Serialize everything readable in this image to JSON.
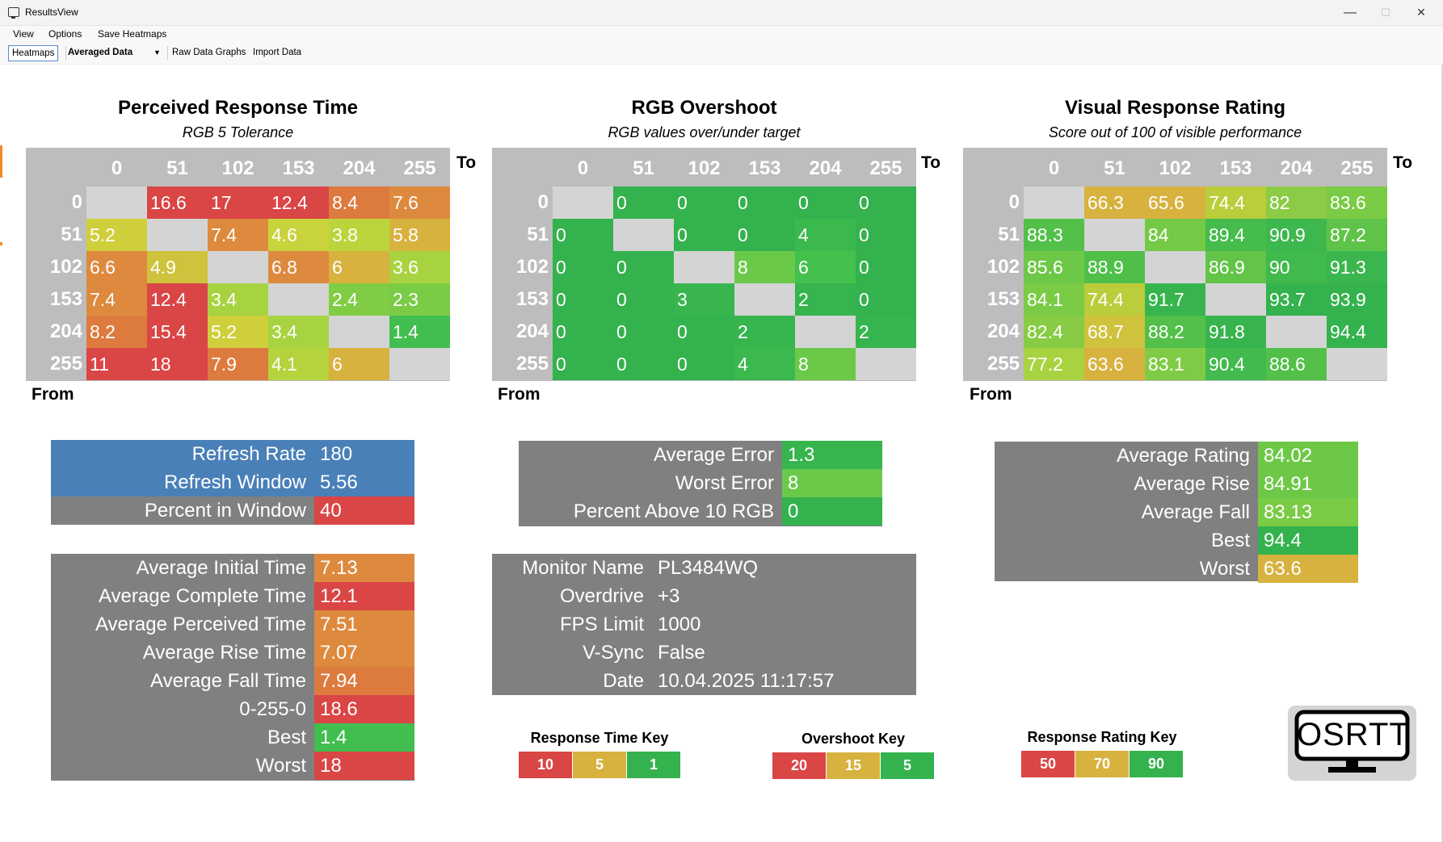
{
  "window": {
    "title": "ResultsView",
    "minimize": "—",
    "maximize": "☐",
    "close": "✕"
  },
  "menu": {
    "view": "View",
    "options": "Options",
    "save": "Save Heatmaps"
  },
  "toolbar": {
    "heatmaps": "Heatmaps",
    "data_mode": "Averaged Data",
    "raw_graphs": "Raw Data Graphs",
    "import": "Import Data"
  },
  "axes": {
    "to": "To",
    "from": "From",
    "levels": [
      "0",
      "51",
      "102",
      "153",
      "204",
      "255"
    ]
  },
  "heatmaps": [
    {
      "title": "Perceived Response Time",
      "subtitle": "RGB 5 Tolerance",
      "cells": [
        [
          "",
          "16.6",
          "17",
          "12.4",
          "8.4",
          "7.6"
        ],
        [
          "5.2",
          "",
          "7.4",
          "4.6",
          "3.8",
          "5.8"
        ],
        [
          "6.6",
          "4.9",
          "",
          "6.8",
          "6",
          "3.6"
        ],
        [
          "7.4",
          "12.4",
          "3.4",
          "",
          "2.4",
          "2.3"
        ],
        [
          "8.2",
          "15.4",
          "5.2",
          "3.4",
          "",
          "1.4"
        ],
        [
          "11",
          "18",
          "7.9",
          "4.1",
          "6",
          ""
        ]
      ],
      "colors": [
        [
          "#d4d4d4",
          "#da4545",
          "#da4545",
          "#da4545",
          "#dd7a3e",
          "#dd8a3e"
        ],
        [
          "#cfcf3c",
          "#d4d4d4",
          "#dd8a3e",
          "#c9d33b",
          "#bad53c",
          "#d7b23f"
        ],
        [
          "#dd8a3e",
          "#cfc23c",
          "#d4d4d4",
          "#dd8a3e",
          "#d7b23f",
          "#a8d341"
        ],
        [
          "#dd8a3e",
          "#da4545",
          "#a8d341",
          "#d4d4d4",
          "#80cd45",
          "#7acb45"
        ],
        [
          "#dd7a3e",
          "#da4545",
          "#cfcf3c",
          "#a8d341",
          "#d4d4d4",
          "#41be4f"
        ],
        [
          "#da4545",
          "#da4545",
          "#dd7a3e",
          "#b5d33d",
          "#d7b23f",
          "#d4d4d4"
        ]
      ]
    },
    {
      "title": "RGB Overshoot",
      "subtitle": "RGB values over/under target",
      "cells": [
        [
          "",
          "0",
          "0",
          "0",
          "0",
          "0"
        ],
        [
          "0",
          "",
          "0",
          "0",
          "4",
          "0"
        ],
        [
          "0",
          "0",
          "",
          "8",
          "6",
          "0"
        ],
        [
          "0",
          "0",
          "3",
          "",
          "2",
          "0"
        ],
        [
          "0",
          "0",
          "0",
          "2",
          "",
          "2"
        ],
        [
          "0",
          "0",
          "0",
          "4",
          "8",
          ""
        ]
      ],
      "colors": [
        [
          "#d4d4d4",
          "#34b24d",
          "#34b24d",
          "#34b24d",
          "#34b24d",
          "#34b24d"
        ],
        [
          "#34b24d",
          "#d4d4d4",
          "#34b24d",
          "#34b24d",
          "#3bb84e",
          "#34b24d"
        ],
        [
          "#34b24d",
          "#34b24d",
          "#d4d4d4",
          "#6bc94a",
          "#44c04c",
          "#34b24d"
        ],
        [
          "#34b24d",
          "#34b24d",
          "#38b54e",
          "#d4d4d4",
          "#36b44e",
          "#34b24d"
        ],
        [
          "#34b24d",
          "#34b24d",
          "#34b24d",
          "#36b44e",
          "#d4d4d4",
          "#36b44e"
        ],
        [
          "#34b24d",
          "#34b24d",
          "#34b24d",
          "#3bb84e",
          "#6bc94a",
          "#d4d4d4"
        ]
      ]
    },
    {
      "title": "Visual Response Rating",
      "subtitle": "Score out of 100 of visible performance",
      "cells": [
        [
          "",
          "66.3",
          "65.6",
          "74.4",
          "82",
          "83.6"
        ],
        [
          "88.3",
          "",
          "84",
          "89.4",
          "90.9",
          "87.2"
        ],
        [
          "85.6",
          "88.9",
          "",
          "86.9",
          "90",
          "91.3"
        ],
        [
          "84.1",
          "74.4",
          "91.7",
          "",
          "93.7",
          "93.9"
        ],
        [
          "82.4",
          "68.7",
          "88.2",
          "91.8",
          "",
          "94.4"
        ],
        [
          "77.2",
          "63.6",
          "83.1",
          "90.4",
          "88.6",
          ""
        ]
      ],
      "colors": [
        [
          "#d4d4d4",
          "#d7b23f",
          "#d7b23f",
          "#bccd3c",
          "#8ccb45",
          "#7acb45"
        ],
        [
          "#52c049",
          "#d4d4d4",
          "#74ca46",
          "#45bc4c",
          "#3db84e",
          "#5ec348"
        ],
        [
          "#6ec848",
          "#4fbf4a",
          "#d4d4d4",
          "#62c448",
          "#40ba4d",
          "#3bb64e"
        ],
        [
          "#7acb45",
          "#bccd3c",
          "#38b44e",
          "#d4d4d4",
          "#34b24d",
          "#34b24d"
        ],
        [
          "#88cb44",
          "#cfc23c",
          "#52c049",
          "#38b44e",
          "#d4d4d4",
          "#34b24d"
        ],
        [
          "#a8d341",
          "#d7b23f",
          "#80cb45",
          "#43ba4d",
          "#52c049",
          "#d4d4d4"
        ]
      ]
    }
  ],
  "refresh_panel": [
    {
      "label": "Refresh Rate",
      "value": "180",
      "label_bg": "#4a80b8",
      "value_bg": "#4a80b8"
    },
    {
      "label": "Refresh Window",
      "value": "5.56",
      "label_bg": "#4a80b8",
      "value_bg": "#4a80b8"
    },
    {
      "label": "Percent in Window",
      "value": "40",
      "label_bg": "#808080",
      "value_bg": "#da4545"
    }
  ],
  "time_panel": [
    {
      "label": "Average Initial Time",
      "value": "7.13",
      "color": "#dd8a3e"
    },
    {
      "label": "Average Complete Time",
      "value": "12.1",
      "color": "#da4545"
    },
    {
      "label": "Average Perceived Time",
      "value": "7.51",
      "color": "#dd8a3e"
    },
    {
      "label": "Average Rise Time",
      "value": "7.07",
      "color": "#dd8a3e"
    },
    {
      "label": "Average Fall Time",
      "value": "7.94",
      "color": "#dd7a3e"
    },
    {
      "label": "0-255-0",
      "value": "18.6",
      "color": "#da4545"
    },
    {
      "label": "Best",
      "value": "1.4",
      "color": "#41be4f"
    },
    {
      "label": "Worst",
      "value": "18",
      "color": "#da4545"
    }
  ],
  "error_panel": [
    {
      "label": "Average Error",
      "value": "1.3",
      "color": "#36b44e"
    },
    {
      "label": "Worst Error",
      "value": "8",
      "color": "#6bc94a"
    },
    {
      "label": "Percent Above 10 RGB",
      "value": "0",
      "color": "#34b24d"
    }
  ],
  "monitor_panel": [
    {
      "label": "Monitor Name",
      "value": "PL3484WQ"
    },
    {
      "label": "Overdrive",
      "value": "+3"
    },
    {
      "label": "FPS Limit",
      "value": "1000"
    },
    {
      "label": "V-Sync",
      "value": "False"
    },
    {
      "label": "Date",
      "value": "10.04.2025 11:17:57"
    }
  ],
  "rating_panel": [
    {
      "label": "Average Rating",
      "value": "84.02",
      "color": "#6ec848"
    },
    {
      "label": "Average Rise",
      "value": "84.91",
      "color": "#6ec848"
    },
    {
      "label": "Average Fall",
      "value": "83.13",
      "color": "#7acb45"
    },
    {
      "label": "Best",
      "value": "94.4",
      "color": "#34b24d"
    },
    {
      "label": "Worst",
      "value": "63.6",
      "color": "#d7b23f"
    }
  ],
  "keys": [
    {
      "title": "Response Time Key",
      "items": [
        {
          "label": "10",
          "color": "#da4545"
        },
        {
          "label": "5",
          "color": "#d7b23f"
        },
        {
          "label": "1",
          "color": "#34b24d"
        }
      ]
    },
    {
      "title": "Overshoot Key",
      "items": [
        {
          "label": "20",
          "color": "#da4545"
        },
        {
          "label": "15",
          "color": "#d7b23f"
        },
        {
          "label": "5",
          "color": "#34b24d"
        }
      ]
    },
    {
      "title": "Response Rating Key",
      "items": [
        {
          "label": "50",
          "color": "#da4545"
        },
        {
          "label": "70",
          "color": "#d7b23f"
        },
        {
          "label": "90",
          "color": "#34b24d"
        }
      ]
    }
  ],
  "logo": {
    "text": "OSRTT"
  }
}
